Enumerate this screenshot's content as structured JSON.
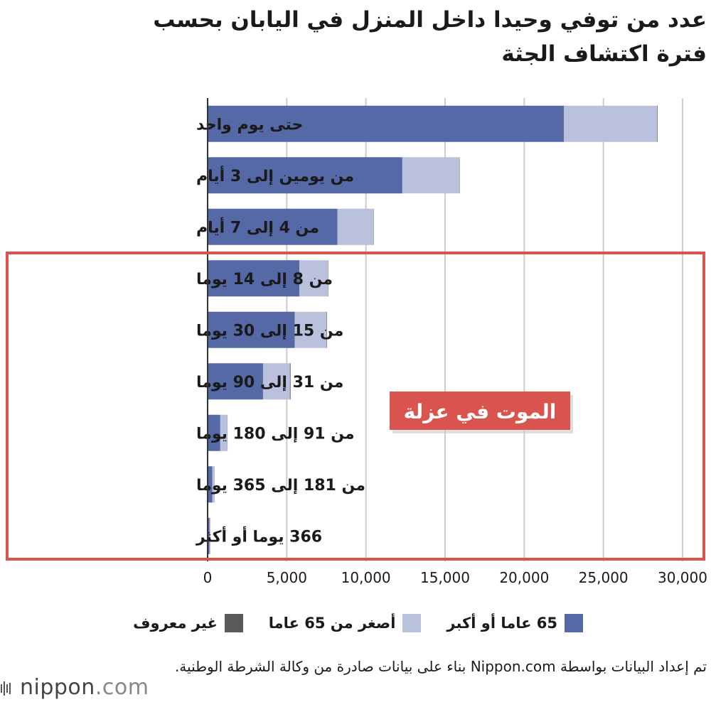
{
  "title_line1": "عدد من توفي وحيدا داخل المنزل في اليابان بحسب",
  "title_line2": "فترة اكتشاف الجثة",
  "highlight_label": "الموت في عزلة",
  "legend": [
    {
      "label": "65 عاما أو أكبر",
      "color": "#5569a6"
    },
    {
      "label": "أصغر من 65 عاما",
      "color": "#b9c1dc"
    },
    {
      "label": "غير معروف",
      "color": "#5a5a5a"
    }
  ],
  "source": "تم إعداد البيانات بواسطة Nippon.com بناء على بيانات صادرة من وكالة الشرطة الوطنية.",
  "logo": {
    "name": "nippon",
    "suffix": ".com"
  },
  "colors": {
    "frame": "#d9534f",
    "grid": "#cccccc",
    "axis": "#333333"
  },
  "chart_data": {
    "type": "bar",
    "orientation": "horizontal",
    "stacked": true,
    "categories": [
      "حتى يوم واحد",
      "من يومين إلى 3 أيام",
      "من 4 إلى 7 أيام",
      "من 8 إلى 14 يوما",
      "من 15 إلى 30 يوما",
      "من 31 إلى 90 يوما",
      "من 91 إلى 180 يوما",
      "من 181 إلى 365 يوما",
      "366 يوما أو أكثر"
    ],
    "series": [
      {
        "name": "65 عاما أو أكبر",
        "values": [
          22500,
          12300,
          8200,
          5800,
          5500,
          3500,
          800,
          300,
          120
        ]
      },
      {
        "name": "أصغر من 65 عاما",
        "values": [
          5900,
          3600,
          2300,
          1800,
          2000,
          1700,
          450,
          150,
          60
        ]
      },
      {
        "name": "غير معروف",
        "values": [
          30,
          20,
          10,
          20,
          30,
          40,
          10,
          0,
          0
        ]
      }
    ],
    "xlim": [
      0,
      30000
    ],
    "xticks": [
      "0",
      "5,000",
      "10,000",
      "15,000",
      "20,000",
      "25,000",
      "30,000"
    ],
    "grid": true
  }
}
